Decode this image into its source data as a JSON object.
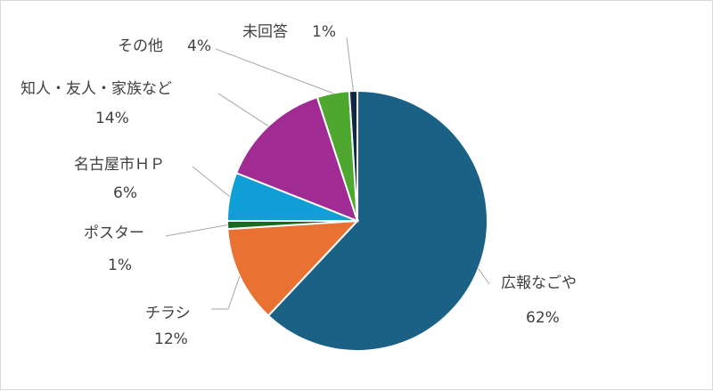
{
  "chart_data": {
    "type": "pie",
    "start_angle_deg": 0,
    "direction": "clockwise",
    "slices": [
      {
        "label": "広報なごや",
        "value": 62,
        "value_label": "62%",
        "color": "#1b6185"
      },
      {
        "label": "チラシ",
        "value": 12,
        "value_label": "12%",
        "color": "#e97132"
      },
      {
        "label": "ポスター",
        "value": 1,
        "value_label": "1%",
        "color": "#196b24"
      },
      {
        "label": "名古屋市ＨＰ",
        "value": 6,
        "value_label": "6%",
        "color": "#0f9ed5"
      },
      {
        "label": "知人・友人・家族など",
        "value": 14,
        "value_label": "14%",
        "color": "#a02b93"
      },
      {
        "label": "その他",
        "value": 4,
        "value_label": "4%",
        "color": "#4ea72e"
      },
      {
        "label": "未回答",
        "value": 1,
        "value_label": "1%",
        "color": "#0e2841"
      }
    ],
    "legend": "none"
  }
}
